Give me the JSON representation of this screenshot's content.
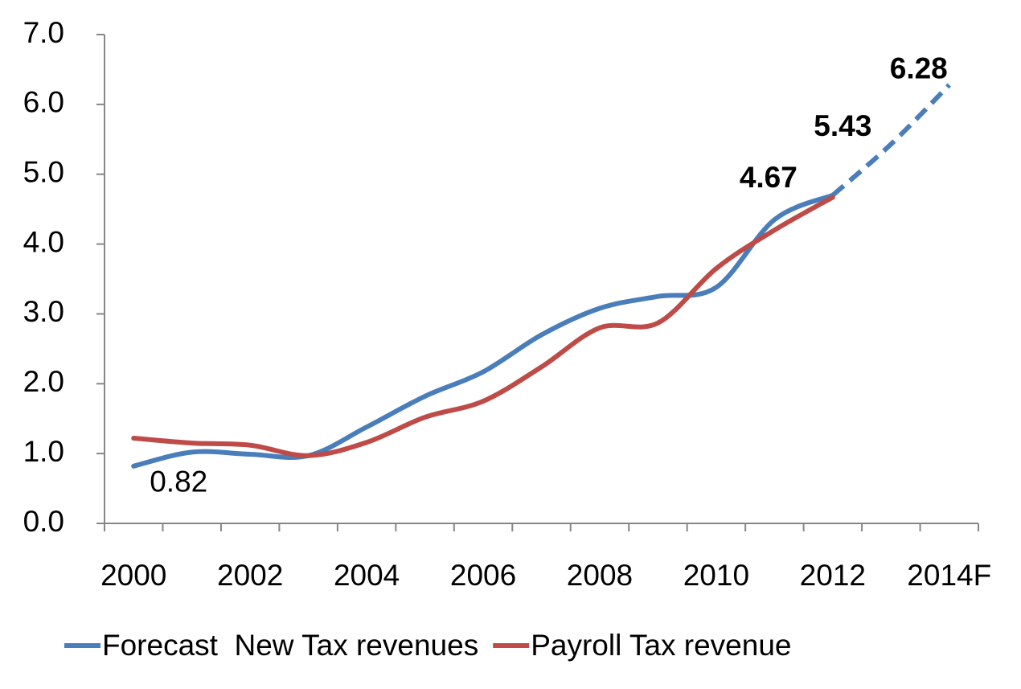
{
  "chart_data": {
    "type": "line",
    "categories": [
      "2000",
      null,
      "2002",
      null,
      "2004",
      null,
      "2006",
      null,
      "2008",
      null,
      "2010",
      null,
      "2012",
      null,
      "2014F"
    ],
    "series": [
      {
        "name": "Forecast  New Tax revenues",
        "color": "#4a7ebb",
        "values": [
          0.82,
          1.02,
          0.99,
          0.97,
          1.38,
          1.82,
          2.17,
          2.7,
          3.08,
          3.25,
          3.38,
          4.35,
          4.7,
          5.43,
          6.28
        ],
        "styles": [
          "solid",
          "solid",
          "solid",
          "solid",
          "solid",
          "solid",
          "solid",
          "solid",
          "solid",
          "solid",
          "solid",
          "solid",
          "solid",
          "dashed",
          "dashed"
        ],
        "value_labels": [
          "0.82",
          null,
          null,
          null,
          null,
          null,
          null,
          null,
          null,
          null,
          null,
          null,
          null,
          "5.43",
          "6.28"
        ],
        "label_colors": [
          "#000000",
          null,
          null,
          null,
          null,
          null,
          null,
          null,
          null,
          null,
          null,
          null,
          null,
          "#4f6228",
          "#4f6228"
        ]
      },
      {
        "name": "Payroll Tax revenue",
        "color": "#be4b48",
        "values": [
          1.22,
          1.15,
          1.12,
          0.97,
          1.16,
          1.52,
          1.75,
          2.24,
          2.8,
          2.87,
          3.65,
          4.2,
          4.67,
          null,
          null
        ],
        "styles": [
          "solid",
          "solid",
          "solid",
          "solid",
          "solid",
          "solid",
          "solid",
          "solid",
          "solid",
          "solid",
          "solid",
          "solid",
          "solid",
          "solid",
          "solid"
        ],
        "value_labels": [
          null,
          null,
          null,
          null,
          null,
          null,
          null,
          null,
          null,
          null,
          null,
          null,
          "4.67",
          null,
          null
        ],
        "label_colors": [
          null,
          null,
          null,
          null,
          null,
          null,
          null,
          null,
          null,
          null,
          null,
          null,
          "#ff6600",
          null,
          null
        ]
      }
    ],
    "ylim": [
      0,
      7
    ],
    "yticks": [
      {
        "value": 0,
        "label": "0.0"
      },
      {
        "value": 1,
        "label": "1.0"
      },
      {
        "value": 2,
        "label": "2.0"
      },
      {
        "value": 3,
        "label": "3.0"
      },
      {
        "value": 4,
        "label": "4.0"
      },
      {
        "value": 5,
        "label": "5.0"
      },
      {
        "value": 6,
        "label": "6.0"
      },
      {
        "value": 7,
        "label": "7.0"
      }
    ],
    "grid": false,
    "legend": "bottom"
  }
}
